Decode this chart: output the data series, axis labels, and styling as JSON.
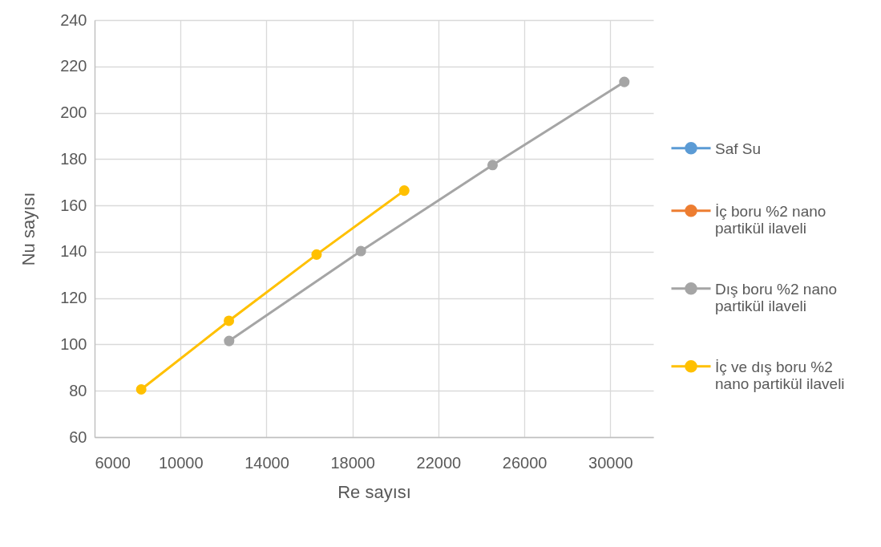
{
  "chart_data": {
    "type": "line",
    "xlabel": "Re sayısı",
    "ylabel": "Nu sayısı",
    "xlim": [
      6000,
      32000
    ],
    "xticks": [
      6000,
      10000,
      14000,
      18000,
      22000,
      26000,
      30000
    ],
    "ylim": [
      60,
      240
    ],
    "yticks": [
      60,
      80,
      100,
      120,
      140,
      160,
      180,
      200,
      220,
      240
    ],
    "grid": true,
    "legend": "right",
    "marker": "circle",
    "line_style": "solid",
    "series": [
      {
        "name": "Saf Su",
        "color": "#5b9bd5",
        "values": [
          null,
          null,
          null,
          null
        ]
      },
      {
        "name": "İç boru %2 nano partikül ilaveli",
        "color": "#ed7d31",
        "values": [
          null,
          null,
          null,
          null
        ]
      },
      {
        "name": "Dış boru %2 nano partikül ilaveli",
        "color": "#a5a5a5",
        "x": [
          12260,
          18390,
          24520,
          30650
        ],
        "values": [
          101.5,
          140.3,
          177.4,
          213.3
        ]
      },
      {
        "name": "İç ve dış boru %2 nano partikül ilaveli",
        "color": "#ffc000",
        "x": [
          8170,
          12250,
          16330,
          20410
        ],
        "values": [
          80.6,
          110.2,
          138.8,
          166.4
        ]
      }
    ]
  }
}
